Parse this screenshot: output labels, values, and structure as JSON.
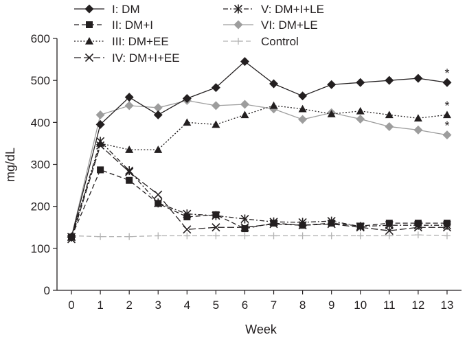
{
  "chart_data": {
    "type": "line",
    "title": "",
    "xlabel": "Week",
    "ylabel": "mg/dL",
    "x": [
      0,
      1,
      2,
      3,
      4,
      5,
      6,
      7,
      8,
      9,
      10,
      11,
      12,
      13
    ],
    "xticks": [
      "0",
      "1",
      "2",
      "3",
      "4",
      "5",
      "6",
      "7",
      "8",
      "9",
      "10",
      "11",
      "12",
      "13"
    ],
    "xlim": [
      -0.5,
      13.5
    ],
    "ylim": [
      0,
      600
    ],
    "yticks": [
      "0",
      "100",
      "200",
      "300",
      "400",
      "500",
      "600"
    ],
    "grid": false,
    "legend_position": "top-left",
    "annotations": [
      {
        "text": "*",
        "x": 13,
        "y": 495
      },
      {
        "text": "*",
        "x": 13,
        "y": 418
      },
      {
        "text": "*",
        "x": 13,
        "y": 370
      }
    ],
    "series": [
      {
        "name": "I: DM",
        "color": "#231f20",
        "dash": "solid",
        "marker": "diamond",
        "values": [
          127,
          395,
          460,
          418,
          457,
          483,
          545,
          492,
          463,
          490,
          495,
          500,
          505,
          495
        ]
      },
      {
        "name": "II: DM+I",
        "color": "#231f20",
        "dash": "dashed",
        "marker": "square",
        "values": [
          127,
          287,
          262,
          207,
          175,
          180,
          147,
          160,
          155,
          160,
          153,
          160,
          160,
          160
        ]
      },
      {
        "name": "III: DM+EE",
        "color": "#231f20",
        "dash": "dotted",
        "marker": "triangle",
        "values": [
          127,
          350,
          335,
          335,
          400,
          395,
          418,
          440,
          432,
          420,
          427,
          418,
          410,
          418
        ]
      },
      {
        "name": "IV: DM+I+EE",
        "color": "#231f20",
        "dash": "longdash",
        "marker": "x",
        "values": [
          122,
          345,
          282,
          228,
          145,
          150,
          150,
          158,
          155,
          158,
          150,
          142,
          150,
          150
        ]
      },
      {
        "name": "V: DM+I+LE",
        "color": "#231f20",
        "dash": "dashdot",
        "marker": "asterisk",
        "values": [
          127,
          355,
          285,
          208,
          182,
          178,
          170,
          163,
          162,
          165,
          152,
          155,
          155,
          155
        ]
      },
      {
        "name": "VI: DM+LE",
        "color": "#9d9d9d",
        "dash": "solid",
        "marker": "diamond",
        "values": [
          127,
          418,
          440,
          435,
          452,
          440,
          443,
          432,
          407,
          423,
          408,
          390,
          382,
          370
        ]
      },
      {
        "name": "Control",
        "color": "#b3b3b3",
        "dash": "dashed",
        "marker": "plus",
        "values": [
          130,
          128,
          128,
          130,
          130,
          130,
          130,
          130,
          130,
          130,
          130,
          130,
          132,
          130
        ]
      }
    ]
  }
}
